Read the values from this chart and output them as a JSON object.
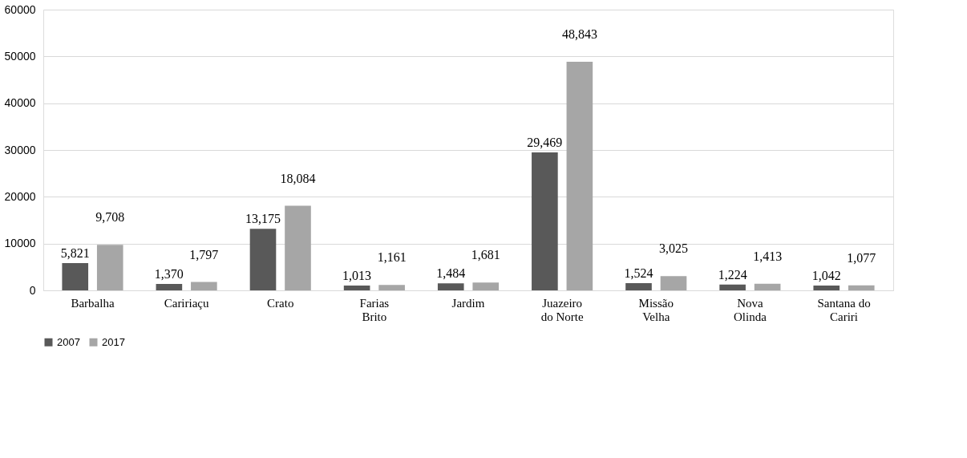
{
  "chart_data": {
    "type": "bar",
    "categories": [
      "Barbalha",
      "Caririaçu",
      "Crato",
      "Farias Brito",
      "Jardim",
      "Juazeiro do Norte",
      "Missão Velha",
      "Nova Olinda",
      "Santana do Cariri"
    ],
    "series": [
      {
        "name": "2007",
        "color": "#595959",
        "values": [
          5821,
          1370,
          13175,
          1013,
          1484,
          29469,
          1524,
          1224,
          1042
        ],
        "value_labels": [
          "5,821",
          "1,370",
          "13,175",
          "1,013",
          "1,484",
          "29,469",
          "1,524",
          "1,224",
          "1,042"
        ]
      },
      {
        "name": "2017",
        "color": "#a6a6a6",
        "values": [
          9708,
          1797,
          18084,
          1161,
          1681,
          48843,
          3025,
          1413,
          1077
        ],
        "value_labels": [
          "9,708",
          "1,797",
          "18,084",
          "1,161",
          "1,681",
          "48,843",
          "3,025",
          "1,413",
          "1,077"
        ]
      }
    ],
    "ylim": [
      0,
      60000
    ],
    "yticks": [
      0,
      10000,
      20000,
      30000,
      40000,
      50000,
      60000
    ],
    "grid": "y",
    "legend": "bottom"
  }
}
